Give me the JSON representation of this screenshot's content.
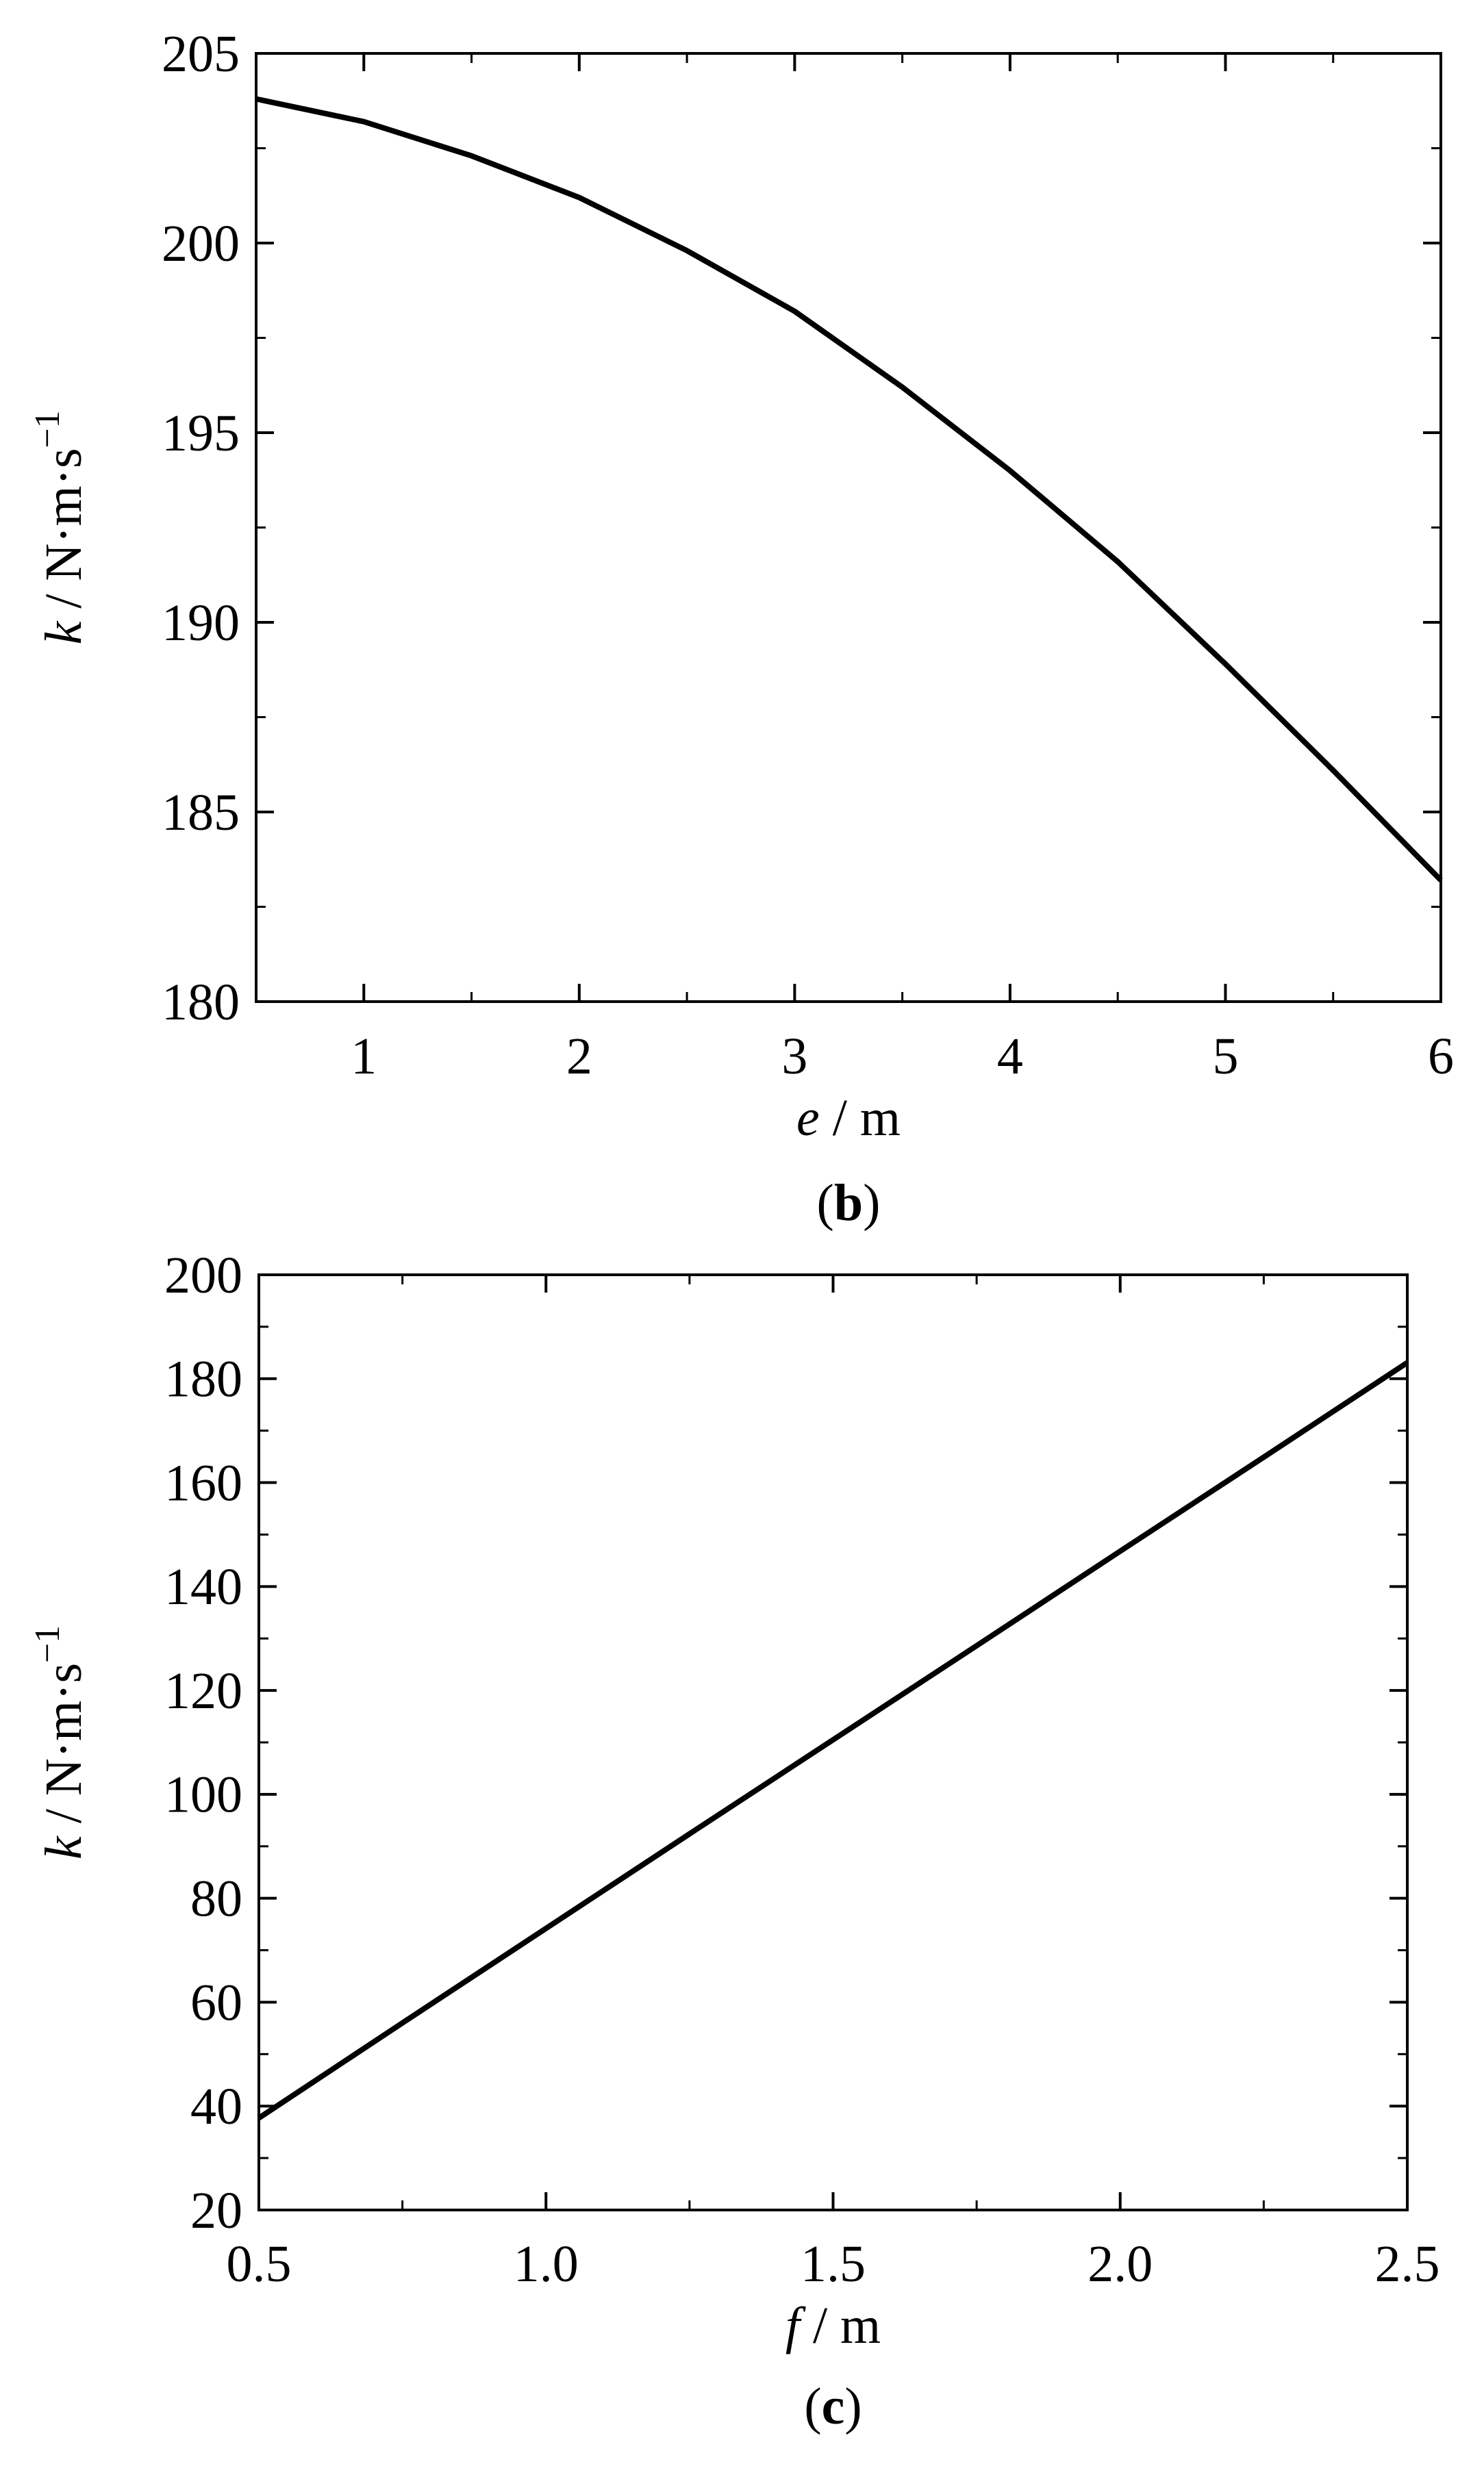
{
  "charts": [
    {
      "id": "b",
      "panel_label": "(b)",
      "panel_letter": "b",
      "xlabel_var": "e",
      "xlabel_unit": "/ m",
      "ylabel_var": "k",
      "ylabel_unit": "/ N·m·s",
      "ylabel_sup": "−1",
      "x_ticks": [
        "1",
        "2",
        "3",
        "4",
        "5",
        "6"
      ],
      "y_ticks": [
        "180",
        "185",
        "190",
        "195",
        "200",
        "205"
      ]
    },
    {
      "id": "c",
      "panel_label": "(c)",
      "panel_letter": "c",
      "xlabel_var": "f",
      "xlabel_unit": "/ m",
      "ylabel_var": "k",
      "ylabel_unit": "/ N·m·s",
      "ylabel_sup": "−1",
      "x_ticks": [
        "0.5",
        "1.0",
        "1.5",
        "2.0",
        "2.5"
      ],
      "y_ticks": [
        "20",
        "40",
        "60",
        "80",
        "100",
        "120",
        "140",
        "160",
        "180",
        "200"
      ]
    }
  ],
  "chart_data": [
    {
      "type": "line",
      "panel": "b",
      "xlabel": "e / m",
      "ylabel": "k / N·m·s−1",
      "xlim": [
        0.5,
        6
      ],
      "ylim": [
        180,
        205
      ],
      "x_tick_values": [
        1,
        2,
        3,
        4,
        5,
        6
      ],
      "y_tick_values": [
        180,
        185,
        190,
        195,
        200,
        205
      ],
      "x_minor_step": 0.5,
      "y_minor_step": 2.5,
      "grid": false,
      "series": [
        {
          "x": [
            0.5,
            1.0,
            1.5,
            2.0,
            2.5,
            3.0,
            3.5,
            4.0,
            4.5,
            5.0,
            5.5,
            6.0
          ],
          "y": [
            203.8,
            203.2,
            202.3,
            201.2,
            199.8,
            198.2,
            196.2,
            194.0,
            191.6,
            188.9,
            186.1,
            183.2
          ]
        }
      ]
    },
    {
      "type": "line",
      "panel": "c",
      "xlabel": "f / m",
      "ylabel": "k / N·m·s−1",
      "xlim": [
        0.5,
        2.5
      ],
      "ylim": [
        20,
        200
      ],
      "x_tick_values": [
        0.5,
        1.0,
        1.5,
        2.0,
        2.5
      ],
      "y_tick_values": [
        20,
        40,
        60,
        80,
        100,
        120,
        140,
        160,
        180,
        200
      ],
      "x_minor_step": 0.25,
      "y_minor_step": 10,
      "grid": false,
      "series": [
        {
          "x": [
            0.5,
            0.75,
            1.0,
            1.25,
            1.5,
            1.75,
            2.0,
            2.25,
            2.5
          ],
          "y": [
            37.7,
            56.0,
            74.2,
            92.4,
            110.5,
            128.6,
            146.8,
            164.9,
            183.1
          ]
        }
      ]
    }
  ],
  "colors": {
    "line": "#000000",
    "axes": "#000000",
    "background": "#ffffff"
  }
}
